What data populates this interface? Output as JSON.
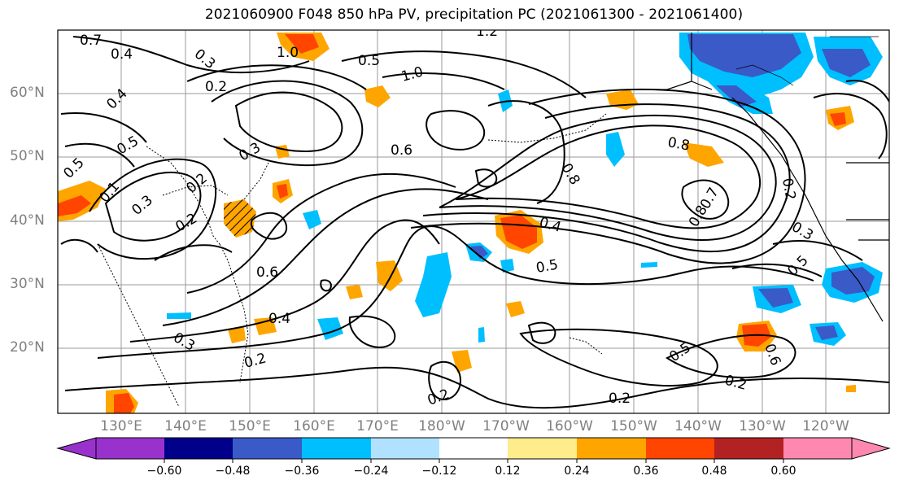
{
  "title": "2021060900 F048 850 hPa PV, precipitation PC (2021061300 - 2021061400)",
  "map": {
    "lat_labels": [
      "60°N",
      "50°N",
      "40°N",
      "30°N",
      "20°N"
    ],
    "lon_labels": [
      "130°E",
      "140°E",
      "150°E",
      "160°E",
      "170°E",
      "180°W",
      "170°W",
      "160°W",
      "150°W",
      "140°W",
      "130°W",
      "120°W"
    ],
    "contour_labels": [
      "0.7",
      "0.4",
      "0.3",
      "1.0",
      "1.2",
      "0.5",
      "0.2",
      "0.4",
      "0.6",
      "0.8",
      "0.3",
      "0.5",
      "0.2",
      "0.5",
      "0.1",
      "0.3",
      "0.2",
      "0.6",
      "0.4",
      "0.3",
      "0.2",
      "0.4",
      "0.5",
      "0.8",
      "0.7",
      "0.8",
      "0.2",
      "0.3",
      "0.5",
      "0.6",
      "0.2",
      "0.5",
      "0.2",
      "0.2",
      "1.0"
    ]
  },
  "colorbar": {
    "colors": [
      "#9932cc",
      "#00008b",
      "#3a5ac8",
      "#00bfff",
      "#b0e2ff",
      "#ffffff",
      "#ffec8b",
      "#ffa500",
      "#ff4500",
      "#b22222",
      "#ff88b0"
    ],
    "tick_labels": [
      "−0.60",
      "−0.48",
      "−0.36",
      "−0.24",
      "−0.12",
      "0.12",
      "0.24",
      "0.36",
      "0.48",
      "0.60"
    ]
  }
}
